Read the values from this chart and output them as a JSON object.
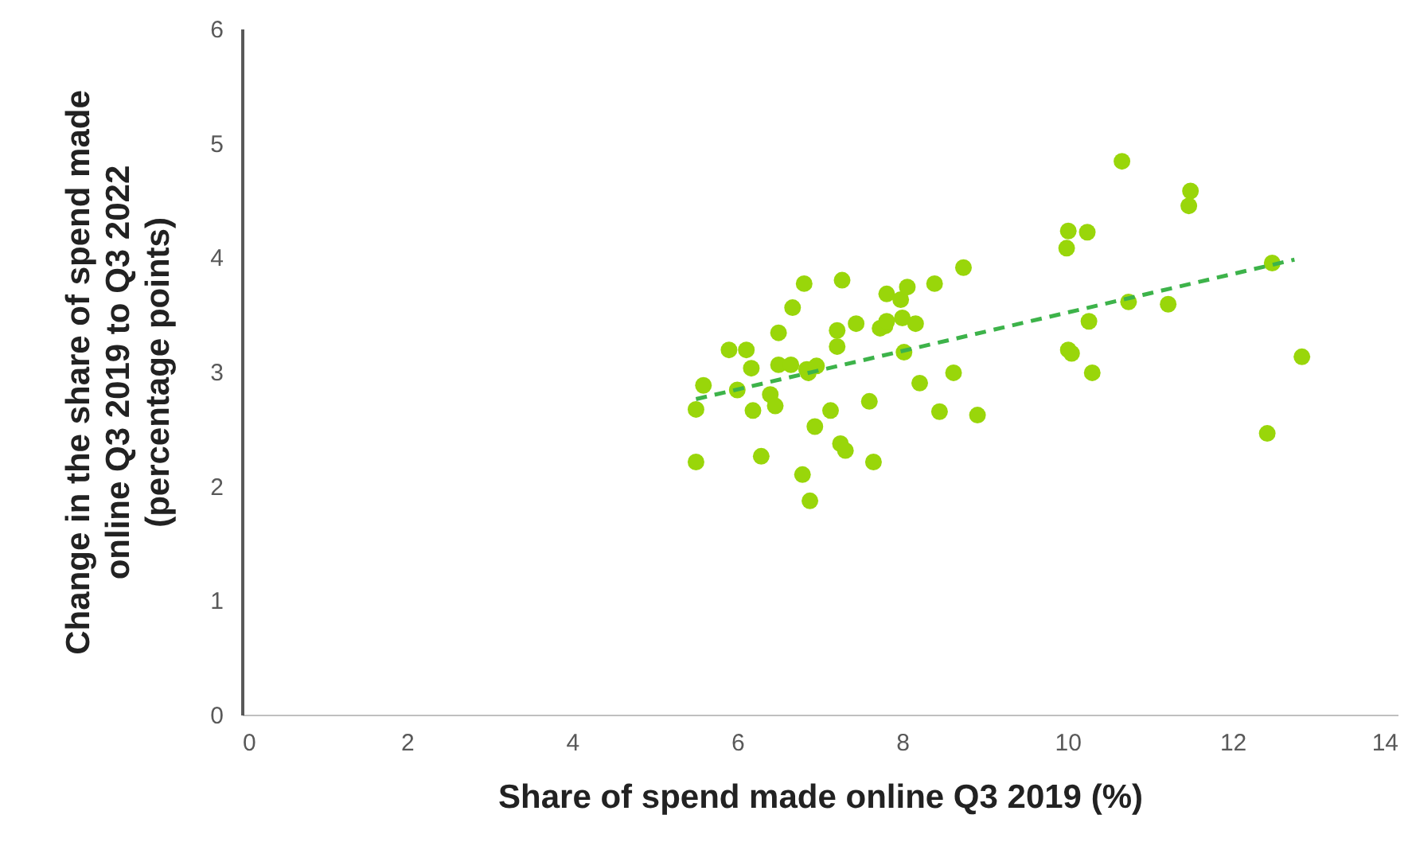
{
  "chart_data": {
    "type": "scatter",
    "xlabel": "Share of spend made online Q3 2019 (%)",
    "ylabel": "Change in the share of spend made online Q3 2019 to Q3 2022 (percentage points)",
    "xlim": [
      0,
      14
    ],
    "xticks": [
      0,
      2,
      4,
      6,
      8,
      10,
      12,
      14
    ],
    "ylim": [
      0,
      6
    ],
    "yticks": [
      0,
      1,
      2,
      3,
      4,
      5,
      6
    ],
    "grid": false,
    "marker": "circle",
    "series": [
      {
        "color": "#99d60a",
        "x": [
          5.5,
          5.5,
          5.59,
          5.9,
          6.0,
          6.11,
          6.17,
          6.19,
          6.29,
          6.4,
          6.46,
          6.5,
          6.5,
          6.67,
          6.65,
          6.81,
          6.79,
          6.84,
          6.86,
          6.88,
          6.94,
          6.96,
          7.13,
          7.21,
          7.21,
          7.27,
          7.25,
          7.31,
          7.44,
          7.6,
          7.65,
          7.73,
          7.79,
          7.81,
          7.81,
          7.98,
          8.0,
          8.02,
          8.06,
          8.16,
          8.21,
          8.39,
          8.45,
          8.62,
          8.74,
          8.91,
          10.66,
          11.49,
          11.47,
          10.01,
          10.24,
          9.99,
          12.48,
          10.74,
          11.22,
          10.26,
          10.01,
          10.05,
          10.3,
          12.84,
          12.42
        ],
        "values": [
          2.67,
          2.21,
          2.88,
          3.19,
          2.84,
          3.19,
          3.03,
          2.66,
          2.26,
          2.8,
          2.7,
          3.34,
          3.06,
          3.56,
          3.06,
          3.77,
          2.1,
          3.02,
          2.99,
          1.87,
          2.52,
          3.05,
          2.66,
          3.36,
          3.22,
          3.8,
          2.37,
          2.31,
          3.42,
          2.74,
          2.21,
          3.38,
          3.4,
          3.68,
          3.44,
          3.63,
          3.47,
          3.17,
          3.74,
          3.42,
          2.9,
          3.77,
          2.65,
          2.99,
          3.91,
          2.62,
          4.84,
          4.58,
          4.45,
          4.23,
          4.22,
          4.08,
          3.95,
          3.61,
          3.59,
          3.44,
          3.19,
          3.16,
          2.99,
          3.13,
          2.46
        ]
      },
      {
        "type": "line",
        "color": "#3db34a",
        "line_style": "dashed",
        "marker": "none",
        "x": [
          5.5,
          12.75
        ],
        "values": [
          2.76,
          3.98
        ]
      }
    ]
  }
}
